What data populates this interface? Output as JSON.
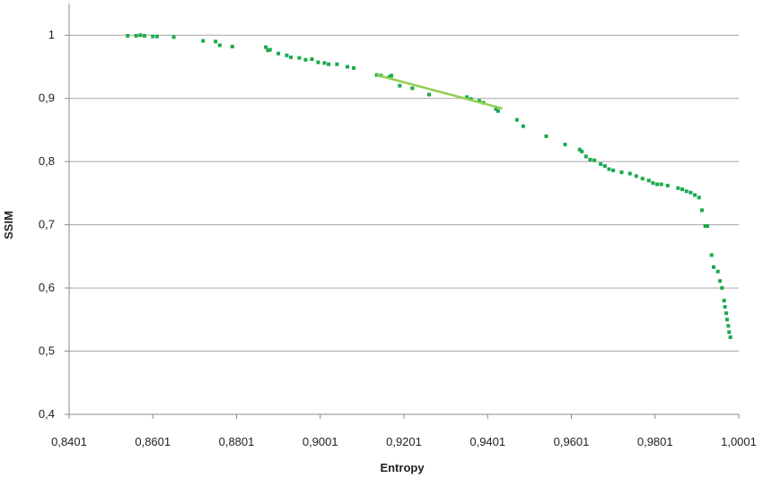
{
  "chart_data": {
    "type": "scatter",
    "title": "",
    "xlabel": "Entropy",
    "ylabel": "SSIM",
    "xlim": [
      0.8401,
      1.0001
    ],
    "ylim": [
      0.4,
      1.05
    ],
    "x_ticks": [
      0.8401,
      0.8601,
      0.8801,
      0.9001,
      0.9201,
      0.9401,
      0.9601,
      0.9801,
      1.0001
    ],
    "x_tick_labels": [
      "0,8401",
      "0,8601",
      "0,8801",
      "0,9001",
      "0,9201",
      "0,9401",
      "0,9601",
      "0,9801",
      "1,0001"
    ],
    "y_ticks": [
      0.4,
      0.5,
      0.6,
      0.7,
      0.8,
      0.9,
      1.0
    ],
    "y_tick_labels": [
      "0,4",
      "0,5",
      "0,6",
      "0,7",
      "0,8",
      "0,9",
      "1"
    ],
    "grid": "horizontal",
    "colors": {
      "points": "#1aaa4a",
      "trendline": "#92d050",
      "grid": "#a6a6a6",
      "axis": "#888888"
    },
    "series": [
      {
        "points": [
          [
            0.8541,
            0.999
          ],
          [
            0.8561,
            0.999
          ],
          [
            0.8571,
            1.0
          ],
          [
            0.8581,
            0.999
          ],
          [
            0.8601,
            0.998
          ],
          [
            0.8611,
            0.998
          ],
          [
            0.8651,
            0.997
          ],
          [
            0.8721,
            0.991
          ],
          [
            0.8751,
            0.99
          ],
          [
            0.8761,
            0.984
          ],
          [
            0.8791,
            0.982
          ],
          [
            0.8871,
            0.981
          ],
          [
            0.8876,
            0.976
          ],
          [
            0.8881,
            0.977
          ],
          [
            0.8901,
            0.971
          ],
          [
            0.8921,
            0.968
          ],
          [
            0.8931,
            0.965
          ],
          [
            0.8951,
            0.964
          ],
          [
            0.8966,
            0.961
          ],
          [
            0.8981,
            0.962
          ],
          [
            0.8996,
            0.957
          ],
          [
            0.9011,
            0.956
          ],
          [
            0.9021,
            0.954
          ],
          [
            0.9041,
            0.954
          ],
          [
            0.9066,
            0.95
          ],
          [
            0.9081,
            0.948
          ],
          [
            0.9136,
            0.937
          ],
          [
            0.9146,
            0.936
          ],
          [
            0.9166,
            0.934
          ],
          [
            0.9171,
            0.936
          ],
          [
            0.9191,
            0.92
          ],
          [
            0.9221,
            0.916
          ],
          [
            0.9261,
            0.906
          ],
          [
            0.9351,
            0.902
          ],
          [
            0.9361,
            0.899
          ],
          [
            0.9381,
            0.896
          ],
          [
            0.9391,
            0.893
          ],
          [
            0.9421,
            0.883
          ],
          [
            0.9426,
            0.88
          ],
          [
            0.9471,
            0.866
          ],
          [
            0.9486,
            0.856
          ],
          [
            0.9541,
            0.84
          ],
          [
            0.9586,
            0.827
          ],
          [
            0.9621,
            0.819
          ],
          [
            0.9626,
            0.816
          ],
          [
            0.9636,
            0.808
          ],
          [
            0.9646,
            0.803
          ],
          [
            0.9656,
            0.802
          ],
          [
            0.9671,
            0.796
          ],
          [
            0.9681,
            0.793
          ],
          [
            0.9691,
            0.788
          ],
          [
            0.9701,
            0.786
          ],
          [
            0.9721,
            0.783
          ],
          [
            0.9741,
            0.781
          ],
          [
            0.9756,
            0.777
          ],
          [
            0.9771,
            0.773
          ],
          [
            0.9786,
            0.77
          ],
          [
            0.9796,
            0.766
          ],
          [
            0.9806,
            0.764
          ],
          [
            0.9816,
            0.764
          ],
          [
            0.9831,
            0.762
          ],
          [
            0.9856,
            0.758
          ],
          [
            0.9866,
            0.756
          ],
          [
            0.9876,
            0.753
          ],
          [
            0.9886,
            0.751
          ],
          [
            0.9896,
            0.747
          ],
          [
            0.9906,
            0.743
          ],
          [
            0.9913,
            0.723
          ],
          [
            0.9921,
            0.698
          ],
          [
            0.9926,
            0.698
          ],
          [
            0.9936,
            0.652
          ],
          [
            0.9941,
            0.633
          ],
          [
            0.9951,
            0.626
          ],
          [
            0.9956,
            0.611
          ],
          [
            0.9961,
            0.6
          ],
          [
            0.9966,
            0.58
          ],
          [
            0.9968,
            0.57
          ],
          [
            0.9971,
            0.56
          ],
          [
            0.9973,
            0.55
          ],
          [
            0.9976,
            0.54
          ],
          [
            0.9978,
            0.53
          ],
          [
            0.9981,
            0.522
          ]
        ]
      }
    ],
    "trendline": {
      "x": [
        0.9136,
        0.9436
      ],
      "y": [
        0.937,
        0.884
      ]
    }
  }
}
